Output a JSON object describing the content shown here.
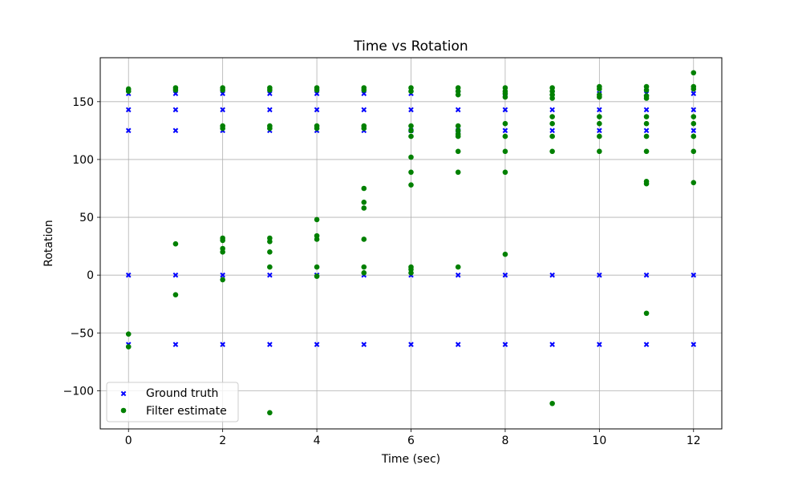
{
  "chart_data": {
    "type": "scatter",
    "title": "Time vs Rotation",
    "xlabel": "Time (sec)",
    "ylabel": "Rotation",
    "xlim": [
      -0.6,
      12.6
    ],
    "ylim": [
      -133,
      188
    ],
    "xticks": [
      0,
      2,
      4,
      6,
      8,
      10,
      12
    ],
    "yticks": [
      -100,
      -50,
      0,
      50,
      100,
      150
    ],
    "grid": true,
    "legend_position": "lower-left",
    "series": [
      {
        "name": "Ground truth",
        "marker": "x",
        "color": "#0000ff",
        "points": [
          [
            0,
            157
          ],
          [
            0,
            143
          ],
          [
            0,
            125
          ],
          [
            0,
            0
          ],
          [
            0,
            -60
          ],
          [
            1,
            157
          ],
          [
            1,
            143
          ],
          [
            1,
            125
          ],
          [
            1,
            0
          ],
          [
            1,
            -60
          ],
          [
            2,
            157
          ],
          [
            2,
            143
          ],
          [
            2,
            125
          ],
          [
            2,
            0
          ],
          [
            2,
            -60
          ],
          [
            3,
            157
          ],
          [
            3,
            143
          ],
          [
            3,
            125
          ],
          [
            3,
            0
          ],
          [
            3,
            -60
          ],
          [
            4,
            157
          ],
          [
            4,
            143
          ],
          [
            4,
            125
          ],
          [
            4,
            0
          ],
          [
            4,
            -60
          ],
          [
            5,
            157
          ],
          [
            5,
            143
          ],
          [
            5,
            125
          ],
          [
            5,
            0
          ],
          [
            5,
            -60
          ],
          [
            6,
            157
          ],
          [
            6,
            143
          ],
          [
            6,
            125
          ],
          [
            6,
            0
          ],
          [
            6,
            -60
          ],
          [
            7,
            157
          ],
          [
            7,
            143
          ],
          [
            7,
            125
          ],
          [
            7,
            0
          ],
          [
            7,
            -60
          ],
          [
            8,
            157
          ],
          [
            8,
            143
          ],
          [
            8,
            125
          ],
          [
            8,
            0
          ],
          [
            8,
            -60
          ],
          [
            9,
            157
          ],
          [
            9,
            143
          ],
          [
            9,
            125
          ],
          [
            9,
            0
          ],
          [
            9,
            -60
          ],
          [
            10,
            157
          ],
          [
            10,
            143
          ],
          [
            10,
            125
          ],
          [
            10,
            0
          ],
          [
            10,
            -60
          ],
          [
            11,
            157
          ],
          [
            11,
            143
          ],
          [
            11,
            125
          ],
          [
            11,
            0
          ],
          [
            11,
            -60
          ],
          [
            12,
            157
          ],
          [
            12,
            143
          ],
          [
            12,
            125
          ],
          [
            12,
            0
          ],
          [
            12,
            -60
          ]
        ]
      },
      {
        "name": "Filter estimate",
        "marker": "circle",
        "color": "#008000",
        "points": [
          [
            0,
            161
          ],
          [
            0,
            159
          ],
          [
            0,
            -51
          ],
          [
            0,
            -62
          ],
          [
            1,
            162
          ],
          [
            1,
            160
          ],
          [
            1,
            27
          ],
          [
            1,
            -17
          ],
          [
            2,
            162
          ],
          [
            2,
            160
          ],
          [
            2,
            129
          ],
          [
            2,
            127
          ],
          [
            2,
            32
          ],
          [
            2,
            30
          ],
          [
            2,
            23
          ],
          [
            2,
            20
          ],
          [
            2,
            -4
          ],
          [
            3,
            162
          ],
          [
            3,
            160
          ],
          [
            3,
            129
          ],
          [
            3,
            127
          ],
          [
            3,
            32
          ],
          [
            3,
            29
          ],
          [
            3,
            20
          ],
          [
            3,
            7
          ],
          [
            3,
            -119
          ],
          [
            4,
            162
          ],
          [
            4,
            160
          ],
          [
            4,
            129
          ],
          [
            4,
            127
          ],
          [
            4,
            48
          ],
          [
            4,
            34
          ],
          [
            4,
            31
          ],
          [
            4,
            7
          ],
          [
            4,
            -1
          ],
          [
            5,
            162
          ],
          [
            5,
            160
          ],
          [
            5,
            129
          ],
          [
            5,
            127
          ],
          [
            5,
            75
          ],
          [
            5,
            63
          ],
          [
            5,
            58
          ],
          [
            5,
            31
          ],
          [
            5,
            7
          ],
          [
            5,
            2
          ],
          [
            6,
            162
          ],
          [
            6,
            159
          ],
          [
            6,
            129
          ],
          [
            6,
            125
          ],
          [
            6,
            120
          ],
          [
            6,
            102
          ],
          [
            6,
            89
          ],
          [
            6,
            78
          ],
          [
            6,
            7
          ],
          [
            6,
            5
          ],
          [
            6,
            2
          ],
          [
            7,
            162
          ],
          [
            7,
            159
          ],
          [
            7,
            156
          ],
          [
            7,
            129
          ],
          [
            7,
            125
          ],
          [
            7,
            122
          ],
          [
            7,
            120
          ],
          [
            7,
            107
          ],
          [
            7,
            89
          ],
          [
            7,
            7
          ],
          [
            8,
            162
          ],
          [
            8,
            159
          ],
          [
            8,
            157
          ],
          [
            8,
            154
          ],
          [
            8,
            131
          ],
          [
            8,
            120
          ],
          [
            8,
            107
          ],
          [
            8,
            89
          ],
          [
            8,
            18
          ],
          [
            9,
            162
          ],
          [
            9,
            159
          ],
          [
            9,
            156
          ],
          [
            9,
            153
          ],
          [
            9,
            137
          ],
          [
            9,
            131
          ],
          [
            9,
            120
          ],
          [
            9,
            107
          ],
          [
            9,
            -111
          ],
          [
            10,
            163
          ],
          [
            10,
            161
          ],
          [
            10,
            156
          ],
          [
            10,
            154
          ],
          [
            10,
            137
          ],
          [
            10,
            131
          ],
          [
            10,
            120
          ],
          [
            10,
            107
          ],
          [
            11,
            163
          ],
          [
            11,
            160
          ],
          [
            11,
            155
          ],
          [
            11,
            153
          ],
          [
            11,
            137
          ],
          [
            11,
            131
          ],
          [
            11,
            120
          ],
          [
            11,
            107
          ],
          [
            11,
            81
          ],
          [
            11,
            79
          ],
          [
            11,
            -33
          ],
          [
            12,
            175
          ],
          [
            12,
            163
          ],
          [
            12,
            161
          ],
          [
            12,
            137
          ],
          [
            12,
            131
          ],
          [
            12,
            120
          ],
          [
            12,
            107
          ],
          [
            12,
            80
          ]
        ]
      }
    ]
  }
}
